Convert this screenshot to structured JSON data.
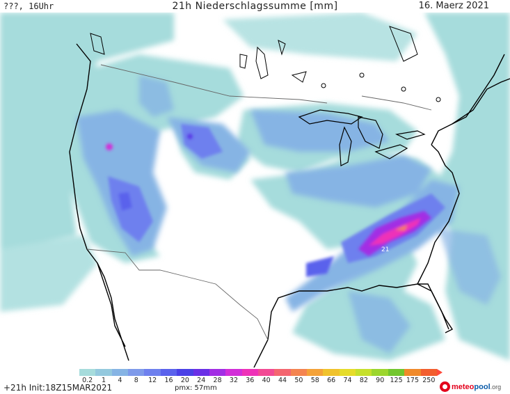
{
  "header": {
    "left": "???, 16Uhr",
    "center": "21h Niederschlagssumme [mm]",
    "right": "16. Maerz 2021"
  },
  "map": {
    "peak_label": "21"
  },
  "legend": {
    "levels": [
      "0.2",
      "1",
      "4",
      "8",
      "12",
      "16",
      "20",
      "24",
      "28",
      "32",
      "36",
      "40",
      "44",
      "50",
      "58",
      "66",
      "74",
      "82",
      "90",
      "125",
      "175",
      "250"
    ],
    "colors": [
      "#a6dcdc",
      "#94c9de",
      "#86b4e4",
      "#7e9aea",
      "#6e80ee",
      "#5a62ec",
      "#4a40e6",
      "#6a30e6",
      "#a22ee4",
      "#d22ed8",
      "#ee32b8",
      "#f24a94",
      "#f46670",
      "#f48450",
      "#f4a238",
      "#f0c22c",
      "#e6dc2a",
      "#c6e02c",
      "#9cd62e",
      "#72c62e",
      "#f08a2a",
      "#f25e2e"
    ],
    "arrow_color": "#ff4a3a"
  },
  "footer": {
    "run": "+21h Init:18Z15MAR2021",
    "pmx": "pmx: 57mm",
    "logo": {
      "part1": "meteo",
      "part2": "pool",
      "part3": ".org"
    }
  }
}
